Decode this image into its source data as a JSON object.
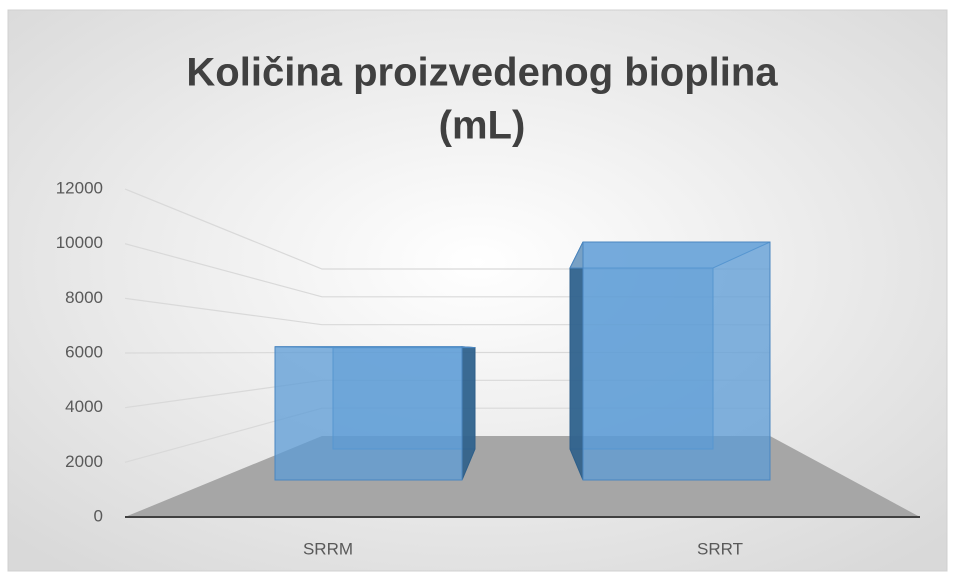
{
  "chart_data": {
    "type": "bar3d",
    "title": [
      "Količina proizvedenog bioplina",
      "(mL)"
    ],
    "categories": [
      "SRRM",
      "SRRT"
    ],
    "values": [
      5600,
      10000
    ],
    "color": "#5b9bd5",
    "ylim": [
      0,
      12000
    ],
    "yticks": [
      0,
      2000,
      4000,
      6000,
      8000,
      10000,
      12000
    ],
    "grid": true
  }
}
